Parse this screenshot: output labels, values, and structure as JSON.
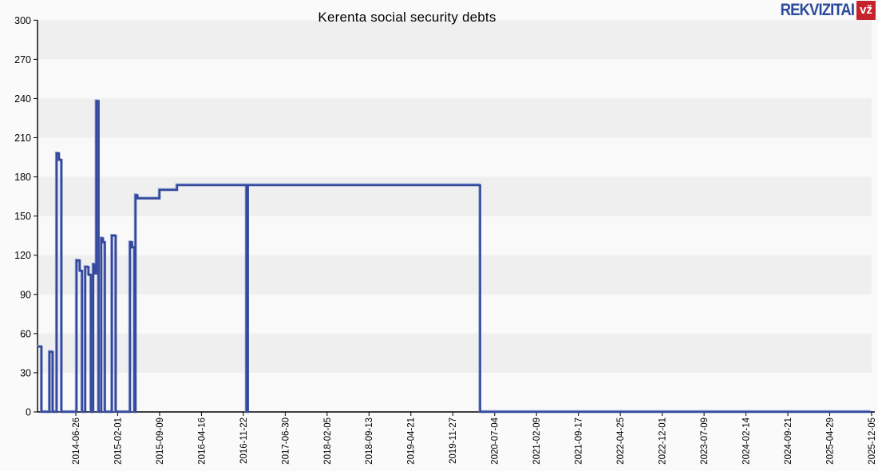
{
  "header": {
    "logo": {
      "text": "REKVIZITAI",
      "badge": "vž",
      "text_color": "#2b4a9e",
      "badge_bg": "#c4232b",
      "badge_text_color": "#ffffff"
    }
  },
  "chart_data": {
    "type": "line",
    "title": "Kerenta social security debts",
    "step": "after",
    "x_type": "date",
    "xlabel": "",
    "ylabel": "",
    "ylim": [
      0,
      300
    ],
    "yticks": [
      0,
      30,
      60,
      90,
      120,
      150,
      180,
      210,
      240,
      270,
      300
    ],
    "xticks": [
      "2014-06-26",
      "2015-02-01",
      "2015-09-09",
      "2016-04-16",
      "2016-11-22",
      "2017-06-30",
      "2018-02-05",
      "2018-09-13",
      "2019-04-21",
      "2019-11-27",
      "2020-07-04",
      "2021-02-09",
      "2021-09-17",
      "2022-04-25",
      "2022-12-01",
      "2023-07-09",
      "2024-02-14",
      "2024-09-21",
      "2025-04-29",
      "2025-12-05"
    ],
    "x_end": "2025-12-03",
    "grid": "bands",
    "grid_bands": [
      [
        30,
        60
      ],
      [
        90,
        120
      ],
      [
        150,
        180
      ],
      [
        210,
        240
      ],
      [
        270,
        300
      ]
    ],
    "band_color": "#efefef",
    "plot_bg": "#f9f9f9",
    "axis_color": "#000000",
    "legend": "none",
    "series": [
      {
        "name": "Social security debt",
        "color": "#34499d",
        "highlight_color": "#8e9ed2",
        "points": [
          [
            "2013-12-11",
            50
          ],
          [
            "2013-12-28",
            0
          ],
          [
            "2014-02-08",
            46
          ],
          [
            "2014-02-25",
            0
          ],
          [
            "2014-03-18",
            198
          ],
          [
            "2014-03-30",
            193
          ],
          [
            "2014-04-12",
            0
          ],
          [
            "2014-06-30",
            116
          ],
          [
            "2014-07-17",
            108
          ],
          [
            "2014-07-29",
            0
          ],
          [
            "2014-08-15",
            111
          ],
          [
            "2014-09-01",
            105
          ],
          [
            "2014-09-14",
            0
          ],
          [
            "2014-09-26",
            113
          ],
          [
            "2014-10-06",
            106
          ],
          [
            "2014-10-12",
            238
          ],
          [
            "2014-10-24",
            0
          ],
          [
            "2014-11-07",
            133
          ],
          [
            "2014-11-16",
            130
          ],
          [
            "2014-11-26",
            0
          ],
          [
            "2015-01-02",
            135
          ],
          [
            "2015-01-22",
            0
          ],
          [
            "2015-04-07",
            130
          ],
          [
            "2015-04-18",
            126
          ],
          [
            "2015-04-30",
            0
          ],
          [
            "2015-05-06",
            166
          ],
          [
            "2015-05-16",
            163.5
          ],
          [
            "2015-09-09",
            170
          ],
          [
            "2015-12-10",
            173.6
          ],
          [
            "2016-12-09",
            0
          ],
          [
            "2016-12-16",
            173.6
          ],
          [
            "2020-04-19",
            0
          ]
        ]
      }
    ]
  }
}
